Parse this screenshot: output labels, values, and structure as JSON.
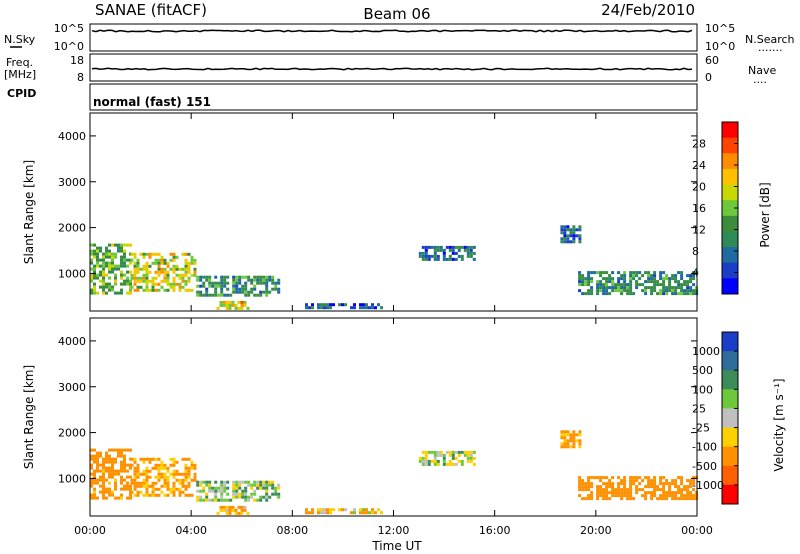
{
  "header": {
    "station": "SANAE (fitACF)",
    "beam": "Beam 06",
    "date": "24/Feb/2010"
  },
  "nsky_panel": {
    "label": "N.Sky",
    "left_ticks": [
      "10^5",
      "10^0"
    ],
    "right_ticks": [
      "10^5",
      "10^0"
    ],
    "right_label": "N.Search",
    "right_dots": "......."
  },
  "freq_panel": {
    "label_line1": "Freq.",
    "label_line2": "[MHz]",
    "left_ticks": [
      "18",
      "8"
    ],
    "right_ticks": [
      "60",
      "0"
    ],
    "right_label": "Nave",
    "right_dots": "....",
    "cpid_label": "CPID"
  },
  "cpid_text": "normal (fast) 151",
  "time_axis": {
    "label": "Time UT",
    "ticks": [
      "00:00",
      "04:00",
      "08:00",
      "12:00",
      "16:00",
      "20:00",
      "00:00"
    ]
  },
  "range_axis": {
    "label": "Slant Range [km]",
    "ticks": [
      "4000",
      "3000",
      "2000",
      "1000"
    ]
  },
  "power_colorbar": {
    "label": "Power [dB]",
    "ticks": [
      "28",
      "24",
      "20",
      "16",
      "12",
      "8",
      "4"
    ],
    "colors": [
      "#ff0000",
      "#ff4400",
      "#ff8c00",
      "#ffc000",
      "#c8d800",
      "#6ec83c",
      "#3c8c3c",
      "#2e8b57",
      "#1f6aa0",
      "#1a3ec8",
      "#0000ff"
    ]
  },
  "velocity_colorbar": {
    "label": "Velocity [m s⁻¹]",
    "ticks": [
      "1000",
      "500",
      "100",
      "25",
      "-25",
      "-100",
      "-500",
      "-1000"
    ],
    "colors": [
      "#1a3ec8",
      "#2e6c9a",
      "#3c8c5a",
      "#6ec83c",
      "#c0c0c0",
      "#ffd000",
      "#ff9000",
      "#ff6000",
      "#ff0000"
    ]
  },
  "chart_data": {
    "type": "heatmap",
    "x_unit": "hours UT",
    "xlim": [
      0,
      24
    ],
    "ylim": [
      180,
      4500
    ],
    "panels": [
      "power",
      "velocity"
    ],
    "echo_regions": [
      {
        "t_start": 0.0,
        "t_end": 1.6,
        "r_min": 600,
        "r_max": 1650,
        "power": 14,
        "velocity": -200
      },
      {
        "t_start": 1.6,
        "t_end": 4.2,
        "r_min": 600,
        "r_max": 1450,
        "power": 18,
        "velocity": -150
      },
      {
        "t_start": 4.2,
        "t_end": 7.5,
        "r_min": 550,
        "r_max": 950,
        "power": 10,
        "velocity": 60
      },
      {
        "t_start": 5.0,
        "t_end": 6.2,
        "r_min": 250,
        "r_max": 400,
        "power": 20,
        "velocity": -120
      },
      {
        "t_start": 8.5,
        "t_end": 11.5,
        "r_min": 250,
        "r_max": 350,
        "power": 6,
        "velocity": -50
      },
      {
        "t_start": 13.0,
        "t_end": 15.2,
        "r_min": 1300,
        "r_max": 1600,
        "power": 6,
        "velocity": 20
      },
      {
        "t_start": 18.6,
        "t_end": 19.4,
        "r_min": 1700,
        "r_max": 2050,
        "power": 6,
        "velocity": -150
      },
      {
        "t_start": 19.3,
        "t_end": 24.0,
        "r_min": 550,
        "r_max": 1050,
        "power": 10,
        "velocity": -300
      }
    ]
  }
}
